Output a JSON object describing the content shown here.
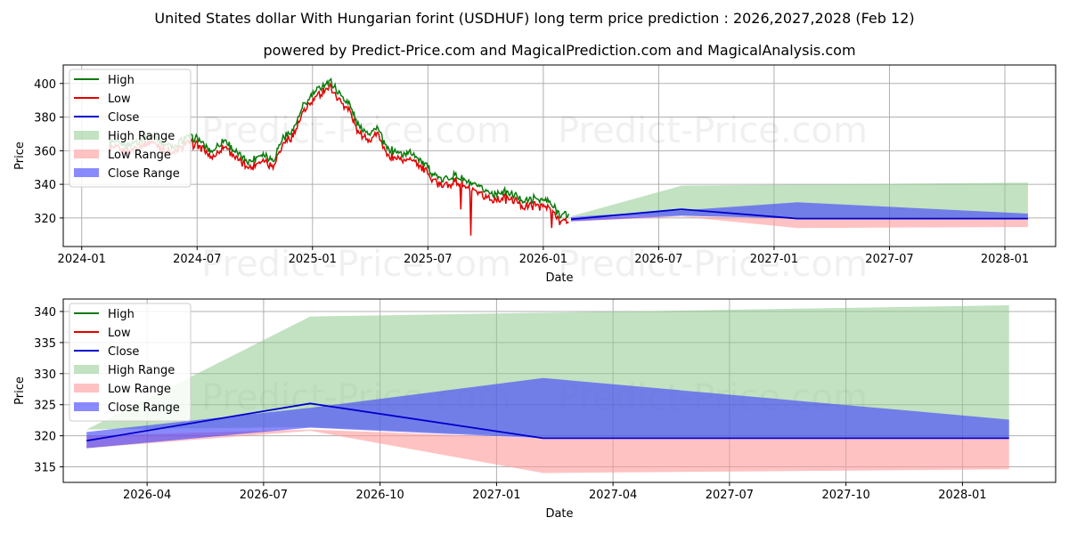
{
  "title": "United States dollar With Hungarian forint (USDHUF) long term price prediction : 2026,2027,2028 (Feb 12)",
  "subtitle": "powered by Predict-Price.com and MagicalPrediction.com and MagicalAnalysis.com",
  "watermark": "Predict-Price.com",
  "colors": {
    "high": "#0a7a0a",
    "low": "#e00000",
    "close": "#0000cc",
    "high_range": "#8fcb8f",
    "low_range": "#ff9a9a",
    "close_range": "#3c3cff",
    "grid": "#b0b0b0"
  },
  "legend": [
    "High",
    "Low",
    "Close",
    "High Range",
    "Low Range",
    "Close Range"
  ],
  "chart_data": [
    {
      "type": "line",
      "name": "overview",
      "xlabel": "Date",
      "ylabel": "Price",
      "xlim": [
        2023.92,
        2028.22
      ],
      "ylim": [
        303,
        411
      ],
      "xticks": [
        {
          "v": 2024.0,
          "label": "2024-01"
        },
        {
          "v": 2024.5,
          "label": "2024-07"
        },
        {
          "v": 2025.0,
          "label": "2025-01"
        },
        {
          "v": 2025.5,
          "label": "2025-07"
        },
        {
          "v": 2026.0,
          "label": "2026-01"
        },
        {
          "v": 2026.5,
          "label": "2026-07"
        },
        {
          "v": 2027.0,
          "label": "2027-01"
        },
        {
          "v": 2027.5,
          "label": "2027-07"
        },
        {
          "v": 2028.0,
          "label": "2028-01"
        }
      ],
      "yticks": [
        320,
        340,
        360,
        380,
        400
      ],
      "history_anchors": [
        [
          2024.12,
          364
        ],
        [
          2024.2,
          362
        ],
        [
          2024.3,
          368
        ],
        [
          2024.4,
          360
        ],
        [
          2024.45,
          367
        ],
        [
          2024.5,
          366
        ],
        [
          2024.56,
          358
        ],
        [
          2024.62,
          365
        ],
        [
          2024.68,
          356
        ],
        [
          2024.73,
          352
        ],
        [
          2024.78,
          357
        ],
        [
          2024.83,
          353
        ],
        [
          2024.87,
          366
        ],
        [
          2024.92,
          372
        ],
        [
          2024.96,
          385
        ],
        [
          2025.0,
          392
        ],
        [
          2025.05,
          398
        ],
        [
          2025.08,
          400
        ],
        [
          2025.12,
          392
        ],
        [
          2025.16,
          386
        ],
        [
          2025.2,
          373
        ],
        [
          2025.25,
          369
        ],
        [
          2025.28,
          373
        ],
        [
          2025.32,
          360
        ],
        [
          2025.38,
          357
        ],
        [
          2025.44,
          357
        ],
        [
          2025.5,
          348
        ],
        [
          2025.56,
          341
        ],
        [
          2025.62,
          344
        ],
        [
          2025.68,
          339
        ],
        [
          2025.73,
          336
        ],
        [
          2025.78,
          333
        ],
        [
          2025.83,
          334
        ],
        [
          2025.88,
          332
        ],
        [
          2025.92,
          329
        ],
        [
          2025.96,
          330
        ],
        [
          2026.02,
          329
        ],
        [
          2026.07,
          321
        ],
        [
          2026.11,
          320
        ]
      ],
      "forecast_x": [
        2026.12,
        2026.6,
        2027.1,
        2028.1
      ],
      "close": [
        319.2,
        325.2,
        319.6,
        319.6
      ],
      "high_range": {
        "upper": [
          321.0,
          339.2,
          339.8,
          341.0
        ],
        "lower": [
          321.0,
          321.4,
          319.8,
          319.8
        ]
      },
      "low_range": {
        "upper": [
          320.0,
          321.0,
          319.6,
          319.6
        ],
        "lower": [
          318.0,
          320.8,
          314.0,
          314.6
        ]
      },
      "close_range": {
        "upper": [
          320.6,
          324.5,
          329.3,
          322.6
        ],
        "lower": [
          318.0,
          321.3,
          319.6,
          319.6
        ]
      }
    },
    {
      "type": "line",
      "name": "forecast-detail",
      "xlabel": "Date",
      "ylabel": "Price",
      "xlim": [
        2026.07,
        2028.2
      ],
      "ylim": [
        312.5,
        342
      ],
      "xticks": [
        {
          "v": 2026.25,
          "label": "2026-04"
        },
        {
          "v": 2026.5,
          "label": "2026-07"
        },
        {
          "v": 2026.75,
          "label": "2026-10"
        },
        {
          "v": 2027.0,
          "label": "2027-01"
        },
        {
          "v": 2027.25,
          "label": "2027-04"
        },
        {
          "v": 2027.5,
          "label": "2027-07"
        },
        {
          "v": 2027.75,
          "label": "2027-10"
        },
        {
          "v": 2028.0,
          "label": "2028-01"
        }
      ],
      "yticks": [
        315,
        320,
        325,
        330,
        335,
        340
      ],
      "forecast_x": [
        2026.12,
        2026.6,
        2027.1,
        2028.1
      ],
      "close": [
        319.2,
        325.2,
        319.6,
        319.6
      ],
      "high_range": {
        "upper": [
          321.0,
          339.2,
          339.8,
          341.0
        ],
        "lower": [
          321.0,
          321.4,
          319.8,
          319.8
        ]
      },
      "low_range": {
        "upper": [
          320.0,
          321.0,
          319.6,
          319.6
        ],
        "lower": [
          318.0,
          320.8,
          314.0,
          314.6
        ]
      },
      "close_range": {
        "upper": [
          320.6,
          324.5,
          329.3,
          322.6
        ],
        "lower": [
          318.0,
          321.3,
          319.6,
          319.6
        ]
      }
    }
  ]
}
